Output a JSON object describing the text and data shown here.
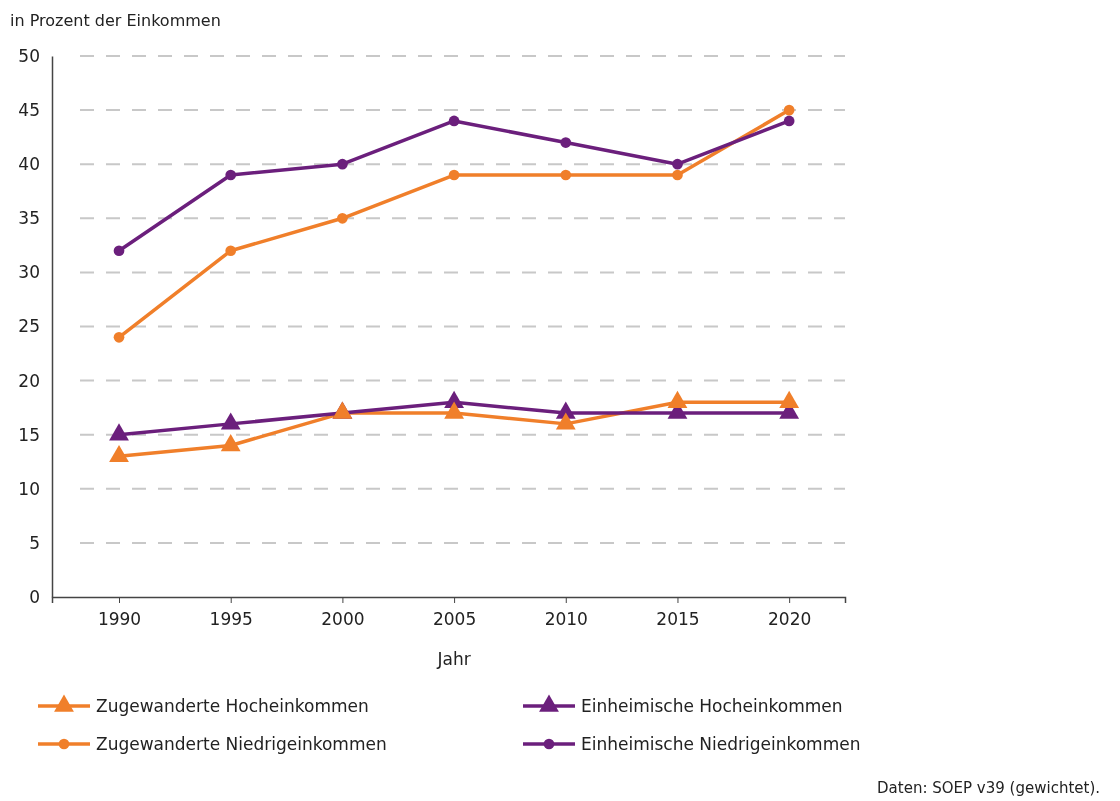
{
  "chart_data": {
    "type": "line",
    "ylabel": "in Prozent der Einkommen",
    "xlabel": "Jahr",
    "x": [
      1990,
      1995,
      2000,
      2005,
      2010,
      2015,
      2020
    ],
    "xlim": [
      1987,
      2022.5
    ],
    "xticks": [
      1990,
      1995,
      2000,
      2005,
      2010,
      2015,
      2020
    ],
    "ylim": [
      0,
      50
    ],
    "yticks": [
      0,
      5,
      10,
      15,
      20,
      25,
      30,
      35,
      40,
      45,
      50
    ],
    "grid": "y",
    "legend": "bottom",
    "line_style": "solid",
    "series": [
      {
        "name": "Zugewanderte Hocheinkommen",
        "color": "#f07f2a",
        "marker": "triangle",
        "values": [
          13,
          14,
          17,
          17,
          16,
          18,
          18
        ]
      },
      {
        "name": "Einheimische Hocheinkommen",
        "color": "#6b1f7c",
        "marker": "triangle",
        "values": [
          15,
          16,
          17,
          18,
          17,
          17,
          17
        ]
      },
      {
        "name": "Zugewanderte Niedrigeinkommen",
        "color": "#f07f2a",
        "marker": "circle",
        "values": [
          24,
          32,
          35,
          39,
          39,
          39,
          45
        ]
      },
      {
        "name": "Einheimische Niedrigeinkommen",
        "color": "#6b1f7c",
        "marker": "circle",
        "values": [
          32,
          39,
          40,
          44,
          42,
          40,
          44
        ]
      }
    ],
    "annotations": [
      "Daten: SOEP v39 (gewichtet)."
    ]
  }
}
